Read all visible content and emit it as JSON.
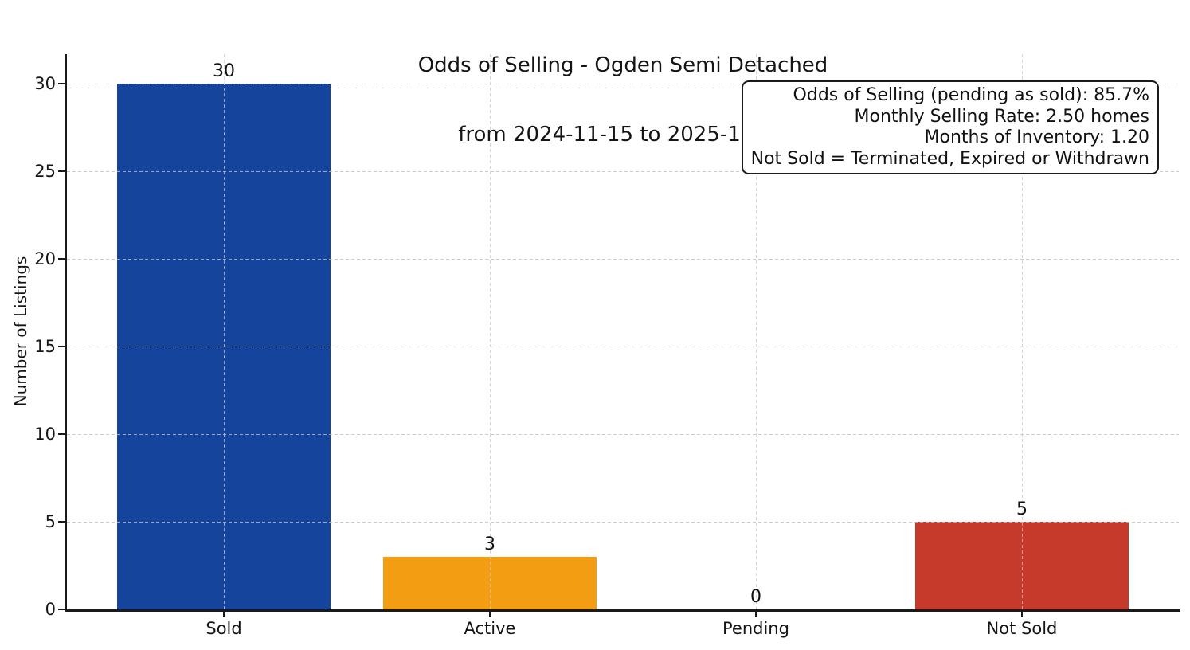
{
  "title": {
    "line1": "Odds of Selling - Ogden Semi Detached",
    "line2": "from 2024-11-15 to 2025-11-15"
  },
  "annotation_box": {
    "lines": [
      "Odds of Selling (pending as sold): 85.7%",
      "Monthly Selling Rate: 2.50 homes",
      "Months of Inventory: 1.20",
      "Not Sold = Terminated, Expired or Withdrawn"
    ]
  },
  "chart_data": {
    "type": "bar",
    "title": "Odds of Selling - Ogden Semi Detached\nfrom 2024-11-15 to 2025-11-15",
    "categories": [
      "Sold",
      "Active",
      "Pending",
      "Not Sold"
    ],
    "values": [
      30,
      3,
      0,
      5
    ],
    "value_labels": [
      "30",
      "3",
      "0",
      "5"
    ],
    "bar_colors": [
      "#14449c",
      "#f39e12",
      null,
      "#c53a2b"
    ],
    "xlabel": "",
    "ylabel": "Number of Listings",
    "yticks": [
      0,
      5,
      10,
      15,
      20,
      25,
      30
    ],
    "ylim": [
      0,
      31.7
    ],
    "xlim": [
      -0.59,
      3.59
    ],
    "bar_width_fraction": 0.8,
    "grid": {
      "style": "dashed",
      "color": "#c4c4c4",
      "axes": "both",
      "over_bars": true
    },
    "legend": "none"
  },
  "colors": {
    "axis": "#1a1a1a",
    "text": "#111111",
    "background": "#ffffff",
    "sold_bar": "#14449c",
    "active_bar": "#f39e12",
    "not_sold_bar": "#c53a2b"
  }
}
